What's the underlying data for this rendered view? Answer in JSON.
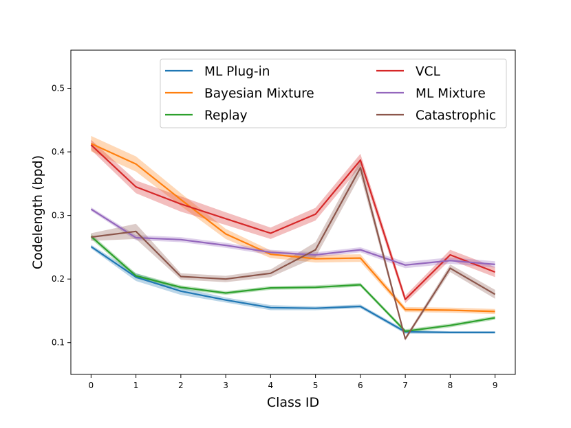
{
  "chart_data": {
    "type": "line",
    "title": "",
    "xlabel": "Class ID",
    "ylabel": "Codelength (bpd)",
    "x": [
      0,
      1,
      2,
      3,
      4,
      5,
      6,
      7,
      8,
      9
    ],
    "xlim": [
      -0.45,
      9.45
    ],
    "ylim": [
      0.05,
      0.56
    ],
    "xticks": [
      "0",
      "1",
      "2",
      "3",
      "4",
      "5",
      "6",
      "7",
      "8",
      "9"
    ],
    "yticks": [
      0.1,
      0.2,
      0.3,
      0.4,
      0.5
    ],
    "ytick_labels": [
      "0.1",
      "0.2",
      "0.3",
      "0.4",
      "0.5"
    ],
    "grid": false,
    "legend_position": "top-right",
    "series": [
      {
        "name": "ML Plug-in",
        "color": "#1f77b4",
        "values": [
          0.251,
          0.203,
          0.181,
          0.167,
          0.155,
          0.154,
          0.157,
          0.117,
          0.116,
          0.116
        ],
        "band": [
          0.003,
          0.006,
          0.006,
          0.004,
          0.004,
          0.003,
          0.003,
          0.003,
          0.002,
          0.002
        ]
      },
      {
        "name": "Bayesian Mixture",
        "color": "#ff7f0e",
        "values": [
          0.413,
          0.381,
          0.325,
          0.271,
          0.239,
          0.232,
          0.233,
          0.152,
          0.151,
          0.149
        ],
        "band": [
          0.012,
          0.012,
          0.01,
          0.008,
          0.006,
          0.006,
          0.006,
          0.004,
          0.004,
          0.004
        ]
      },
      {
        "name": "Replay",
        "color": "#2ca02c",
        "values": [
          0.267,
          0.205,
          0.187,
          0.178,
          0.186,
          0.187,
          0.191,
          0.118,
          0.127,
          0.139
        ],
        "band": [
          0.004,
          0.004,
          0.003,
          0.003,
          0.003,
          0.003,
          0.003,
          0.003,
          0.003,
          0.003
        ]
      },
      {
        "name": "VCL",
        "color": "#d62728",
        "values": [
          0.411,
          0.345,
          0.318,
          0.295,
          0.272,
          0.302,
          0.387,
          0.168,
          0.238,
          0.211
        ],
        "band": [
          0.008,
          0.01,
          0.012,
          0.01,
          0.009,
          0.01,
          0.01,
          0.006,
          0.008,
          0.008
        ]
      },
      {
        "name": "ML Mixture",
        "color": "#9467bd",
        "values": [
          0.31,
          0.265,
          0.262,
          0.253,
          0.242,
          0.238,
          0.246,
          0.222,
          0.229,
          0.223
        ],
        "band": [
          0.003,
          0.004,
          0.004,
          0.004,
          0.004,
          0.004,
          0.004,
          0.005,
          0.005,
          0.005
        ]
      },
      {
        "name": "Catastrophic",
        "color": "#8c564b",
        "values": [
          0.266,
          0.275,
          0.204,
          0.2,
          0.209,
          0.246,
          0.375,
          0.106,
          0.217,
          0.176
        ],
        "band": [
          0.006,
          0.012,
          0.005,
          0.005,
          0.006,
          0.012,
          0.012,
          0.003,
          0.006,
          0.007
        ]
      }
    ]
  }
}
